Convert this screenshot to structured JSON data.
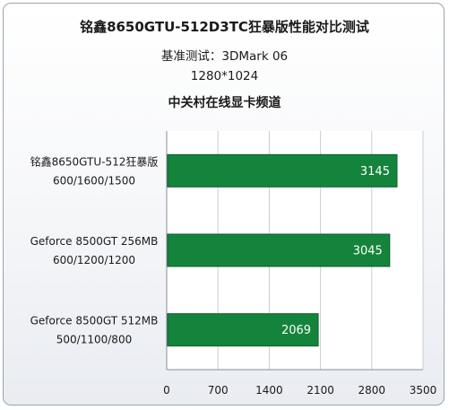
{
  "chart_data": {
    "type": "bar",
    "orientation": "horizontal",
    "title": "铭鑫8650GTU-512D3TC狂暴版性能对比测试",
    "subtitles": [
      "基准测试：3DMark 06",
      "1280*1024",
      "中关村在线显卡频道"
    ],
    "categories": [
      [
        "铭鑫8650GTU-512狂暴版",
        "600/1600/1500"
      ],
      [
        "Geforce 8500GT 256MB",
        "600/1200/1200"
      ],
      [
        "Geforce 8500GT 512MB",
        "500/1100/800"
      ]
    ],
    "values": [
      3145,
      3045,
      2069
    ],
    "value_labels": [
      "3145",
      "3045",
      "2069"
    ],
    "xlim": [
      0,
      3500
    ],
    "xticks": [
      "0",
      "700",
      "1400",
      "2100",
      "2800",
      "3500"
    ],
    "grid": true,
    "legend": "none",
    "bar_color": "#14843c",
    "bar_border": "#0b5e28"
  }
}
